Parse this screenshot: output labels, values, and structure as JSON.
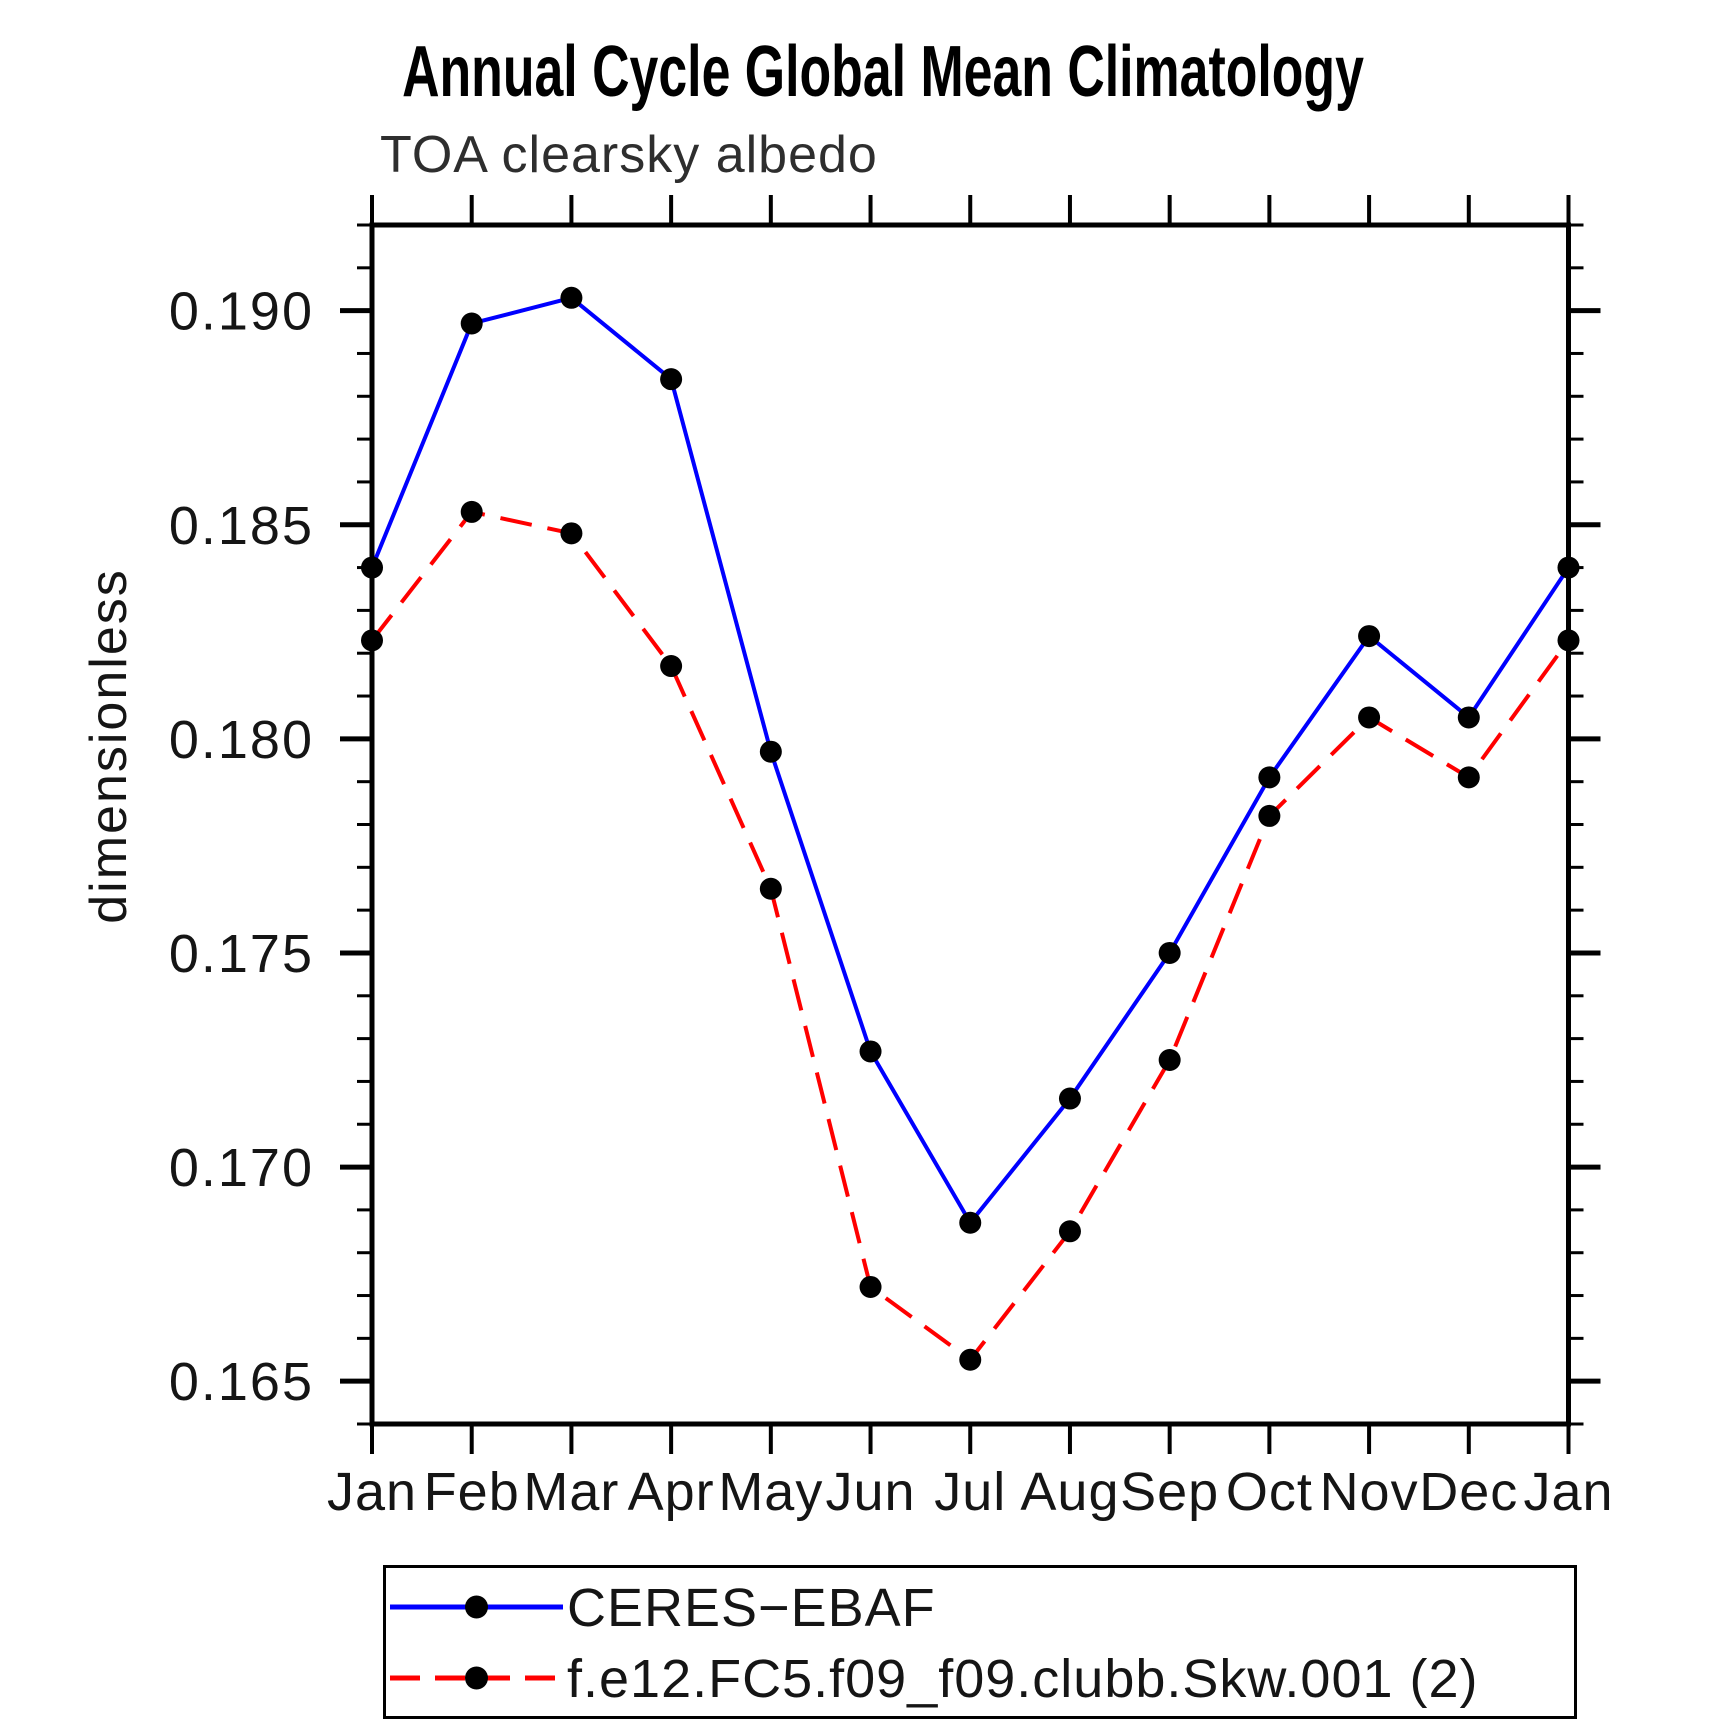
{
  "title": "Annual Cycle Global Mean Climatology",
  "subtitle": "TOA clearsky albedo",
  "ylabel": "dimensionless",
  "legend": {
    "entries": [
      {
        "label": "CERES−EBAF",
        "color": "#0000ff",
        "style": "solid",
        "marker": "filled-circle"
      },
      {
        "label": "f.e12.FC5.f09_f09.clubb.Skw.001 (2)",
        "color": "#ff0000",
        "style": "dashed",
        "marker": "filled-circle"
      }
    ]
  },
  "colors": {
    "obs_line": "#0000ff",
    "model_line": "#ff0000",
    "marker": "#000000",
    "axis": "#000000",
    "background": "#ffffff"
  },
  "chart_data": {
    "type": "line",
    "title": "Annual Cycle Global Mean Climatology",
    "subtitle": "TOA clearsky albedo",
    "xlabel": "",
    "ylabel": "dimensionless",
    "x_categories": [
      "Jan",
      "Feb",
      "Mar",
      "Apr",
      "May",
      "Jun",
      "Jul",
      "Aug",
      "Sep",
      "Oct",
      "Nov",
      "Dec",
      "Jan"
    ],
    "series": [
      {
        "name": "CERES−EBAF",
        "color": "#0000ff",
        "line_style": "solid",
        "marker": "filled-circle",
        "values": [
          0.184,
          0.1897,
          0.1903,
          0.1884,
          0.1797,
          0.1727,
          0.1687,
          0.1716,
          0.175,
          0.1791,
          0.1824,
          0.1805,
          0.184
        ]
      },
      {
        "name": "f.e12.FC5.f09_f09.clubb.Skw.001 (2)",
        "color": "#ff0000",
        "line_style": "dashed",
        "marker": "filled-circle",
        "values": [
          0.1823,
          0.1853,
          0.1848,
          0.1817,
          0.1765,
          0.1672,
          0.1655,
          0.1685,
          0.1725,
          0.1782,
          0.1805,
          0.1791,
          0.1823
        ]
      }
    ],
    "ylim": [
      0.164,
      0.192
    ],
    "ytick_major": [
      0.165,
      0.17,
      0.175,
      0.18,
      0.185,
      0.19
    ],
    "ytick_major_labels": [
      "0.165",
      "0.170",
      "0.175",
      "0.180",
      "0.185",
      "0.190"
    ],
    "ytick_minor_step": 0.001,
    "grid": false,
    "legend_position": "below"
  }
}
